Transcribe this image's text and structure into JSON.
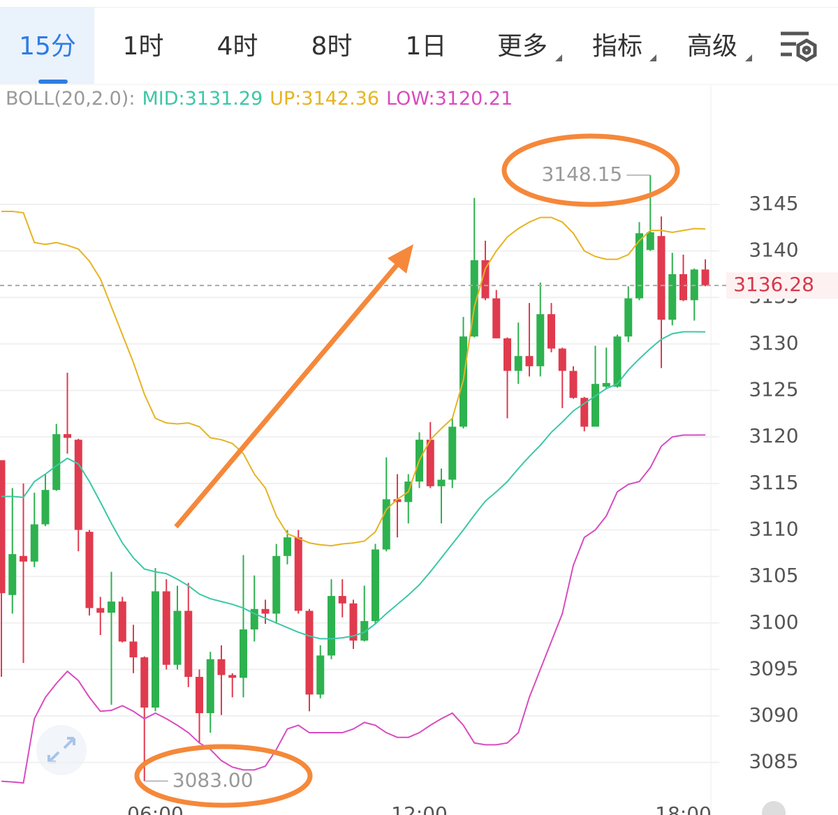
{
  "tabs": [
    "15分",
    "1时",
    "4时",
    "8时",
    "1日",
    "更多",
    "指标",
    "高级"
  ],
  "chart_data": {
    "type": "candlestick",
    "indicator": "BOLL(20,2.0):",
    "categories": [
      null,
      null,
      null,
      null,
      null,
      null,
      null,
      null,
      null,
      null,
      null,
      null,
      null,
      null,
      "06:00",
      null,
      null,
      null,
      null,
      null,
      null,
      null,
      null,
      null,
      null,
      null,
      null,
      null,
      null,
      null,
      null,
      null,
      null,
      null,
      null,
      null,
      null,
      null,
      "12:00",
      null,
      null,
      null,
      null,
      null,
      null,
      null,
      null,
      null,
      null,
      null,
      null,
      null,
      null,
      null,
      null,
      null,
      null,
      null,
      null,
      null,
      null,
      null,
      "18:00",
      null,
      null
    ],
    "open": [
      3117.5,
      3103.0,
      3107.2,
      3106.6,
      3110.6,
      3114.3,
      3120.3,
      3119.7,
      3109.8,
      3101.6,
      3101.1,
      3102.3,
      3098.0,
      3096.3,
      3090.9,
      3103.4,
      3095.5,
      3101.3,
      3094.2,
      3090.3,
      3096.1,
      3094.4,
      3094.1,
      3099.3,
      3101.5,
      3101.0,
      3107.2,
      3109.2,
      3101.3,
      3092.3,
      3096.5,
      3102.9,
      3102.1,
      3098.1,
      3100.2,
      3107.9,
      3113.3,
      3113.0,
      3115.2,
      3119.7,
      3114.7,
      3115.4,
      3121.1,
      3130.8,
      3139.0,
      3134.9,
      3130.6,
      3127.1,
      3128.7,
      3127.6,
      3133.2,
      3129.5,
      3127.1,
      3124.2,
      3121.1,
      3125.4,
      3125.4,
      3130.8,
      3134.9,
      3140.1,
      3141.6,
      3132.6,
      3137.5,
      3134.7,
      3138.0
    ],
    "high": [
      3117.5,
      3114.5,
      3115.0,
      3114.0,
      3116.0,
      3121.4,
      3126.9,
      3119.8,
      3110.0,
      3102.8,
      3105.5,
      3102.8,
      3099.8,
      3096.4,
      3105.9,
      3104.7,
      3104.0,
      3104.3,
      3095.0,
      3096.9,
      3097.6,
      3094.6,
      3107.3,
      3105.1,
      3102.5,
      3108.5,
      3110.0,
      3110.0,
      3101.5,
      3097.6,
      3104.7,
      3104.7,
      3102.5,
      3104.0,
      3108.5,
      3117.8,
      3116.0,
      3116.0,
      3120.5,
      3121.6,
      3116.6,
      3122.0,
      3132.9,
      3145.7,
      3141.1,
      3135.8,
      3130.7,
      3132.3,
      3134.4,
      3136.6,
      3134.4,
      3129.6,
      3127.6,
      3124.3,
      3129.8,
      3129.6,
      3131.0,
      3136.2,
      3143.1,
      3148.15,
      3143.7,
      3139.8,
      3139.6,
      3138.1,
      3139.1
    ],
    "low": [
      3094.2,
      3101.0,
      3095.7,
      3106.0,
      3110.4,
      3114.2,
      3118.2,
      3107.7,
      3100.8,
      3098.7,
      3091.2,
      3097.9,
      3094.6,
      3083,
      3090.5,
      3095.0,
      3095.0,
      3093.1,
      3087.1,
      3088.2,
      3090.1,
      3092.0,
      3092.0,
      3098.0,
      3099.9,
      3099.9,
      3106.3,
      3101.0,
      3090.5,
      3091.9,
      3096.1,
      3100.6,
      3097.2,
      3098.0,
      3099.9,
      3107.7,
      3109.2,
      3110.7,
      3114.5,
      3114.5,
      3110.7,
      3114.5,
      3120.9,
      3130.7,
      3134.7,
      3130.6,
      3122.0,
      3125.7,
      3126.5,
      3126.5,
      3129.1,
      3123.1,
      3124.1,
      3120.6,
      3121.1,
      3125.2,
      3125.3,
      3130.2,
      3134.7,
      3140.0,
      3127.4,
      3132.0,
      3134.6,
      3132.5,
      3136.2
    ],
    "close": [
      3103.2,
      3107.4,
      3106.6,
      3110.6,
      3114.3,
      3120.3,
      3119.9,
      3110.0,
      3101.6,
      3101.1,
      3102.3,
      3098.0,
      3096.3,
      3090.9,
      3103.4,
      3095.5,
      3101.3,
      3094.2,
      3090.3,
      3096.1,
      3094.4,
      3094.1,
      3099.3,
      3101.5,
      3101.0,
      3107.2,
      3109.2,
      3101.3,
      3092.3,
      3096.5,
      3102.9,
      3102.1,
      3098.1,
      3100.2,
      3107.9,
      3113.3,
      3113.0,
      3115.2,
      3119.7,
      3114.7,
      3115.4,
      3121.1,
      3130.8,
      3139.0,
      3134.9,
      3130.6,
      3127.1,
      3128.7,
      3127.6,
      3133.2,
      3129.5,
      3127.1,
      3124.2,
      3121.1,
      3125.7,
      3125.8,
      3130.8,
      3134.9,
      3141.9,
      3142.0,
      3132.6,
      3137.5,
      3134.7,
      3138.0,
      3136.28
    ],
    "up_color": "#2eb14f",
    "down_color": "#e03a4e",
    "series": [
      {
        "name": "MID:",
        "color": "#3cc7a6",
        "values": [
          3113.6,
          3113.6,
          3113.5,
          3115.2,
          3116.0,
          3116.9,
          3117.7,
          3117.1,
          3115.2,
          3113.0,
          3110.7,
          3108.6,
          3107.0,
          3105.8,
          3105.5,
          3105.3,
          3104.7,
          3104.0,
          3103.1,
          3102.6,
          3102.3,
          3102.0,
          3101.6,
          3101.0,
          3100.5,
          3100.0,
          3099.5,
          3099.0,
          3098.6,
          3098.3,
          3098.3,
          3098.4,
          3098.6,
          3099.0,
          3099.9,
          3101.0,
          3102.0,
          3103.0,
          3104.1,
          3105.5,
          3107.0,
          3108.5,
          3110.0,
          3111.6,
          3113.1,
          3114.1,
          3115.2,
          3116.6,
          3117.9,
          3119.1,
          3120.5,
          3121.6,
          3122.8,
          3123.6,
          3124.4,
          3125.2,
          3125.7,
          3127.2,
          3128.4,
          3129.5,
          3130.5,
          3131.1,
          3131.3,
          3131.3,
          3131.29
        ]
      },
      {
        "name": "UP:",
        "color": "#e6b422",
        "values": [
          3144.25,
          3144.25,
          3144.1,
          3140.9,
          3140.7,
          3140.9,
          3140.6,
          3140.2,
          3138.9,
          3137.0,
          3134.0,
          3131.0,
          3128.0,
          3124.6,
          3122.0,
          3121.5,
          3121.4,
          3121.5,
          3121.1,
          3119.9,
          3119.7,
          3119.3,
          3118.2,
          3116.0,
          3114.5,
          3111.5,
          3109.6,
          3109.1,
          3108.6,
          3108.4,
          3108.3,
          3108.5,
          3108.6,
          3108.8,
          3109.8,
          3112.2,
          3113.3,
          3114.1,
          3117.5,
          3119.7,
          3120.9,
          3122.0,
          3126.1,
          3134.0,
          3138.1,
          3140.0,
          3141.5,
          3142.4,
          3143.1,
          3143.6,
          3143.6,
          3143.1,
          3141.9,
          3140.0,
          3139.4,
          3139.1,
          3139.1,
          3139.6,
          3141.1,
          3142.2,
          3142.2,
          3142.0,
          3142.2,
          3142.4,
          3142.36
        ]
      },
      {
        "name": "LOW:",
        "color": "#d84cc0",
        "values": [
          3082.98,
          3082.9,
          3082.8,
          3089.7,
          3092.0,
          3093.5,
          3094.8,
          3093.8,
          3092.0,
          3090.5,
          3090.6,
          3091.1,
          3090.5,
          3089.7,
          3090.3,
          3089.7,
          3089.0,
          3088.2,
          3087.1,
          3086.4,
          3085.2,
          3084.5,
          3084.2,
          3084.2,
          3084.6,
          3086.4,
          3088.6,
          3089.0,
          3088.2,
          3088.2,
          3088.2,
          3088.2,
          3088.6,
          3089.3,
          3089.0,
          3088.2,
          3087.7,
          3087.7,
          3088.2,
          3089.0,
          3089.7,
          3090.3,
          3089.0,
          3087.1,
          3086.9,
          3086.9,
          3087.1,
          3088.2,
          3092.0,
          3095.0,
          3098.0,
          3101.0,
          3106.2,
          3109.2,
          3110.0,
          3111.5,
          3114.1,
          3114.9,
          3115.2,
          3116.7,
          3119.0,
          3120.0,
          3120.2,
          3120.2,
          3120.21
        ]
      }
    ],
    "annotations": [
      3148.15,
      {
        "value": 3083,
        "label": "3083.00"
      }
    ],
    "ylim": [
      3080.7,
      3157.6
    ],
    "yticks": [
      3085,
      3090,
      3095,
      3100,
      3105,
      3110,
      3115,
      3120,
      3125,
      3130,
      3135,
      3140,
      3145
    ],
    "grid": true
  }
}
